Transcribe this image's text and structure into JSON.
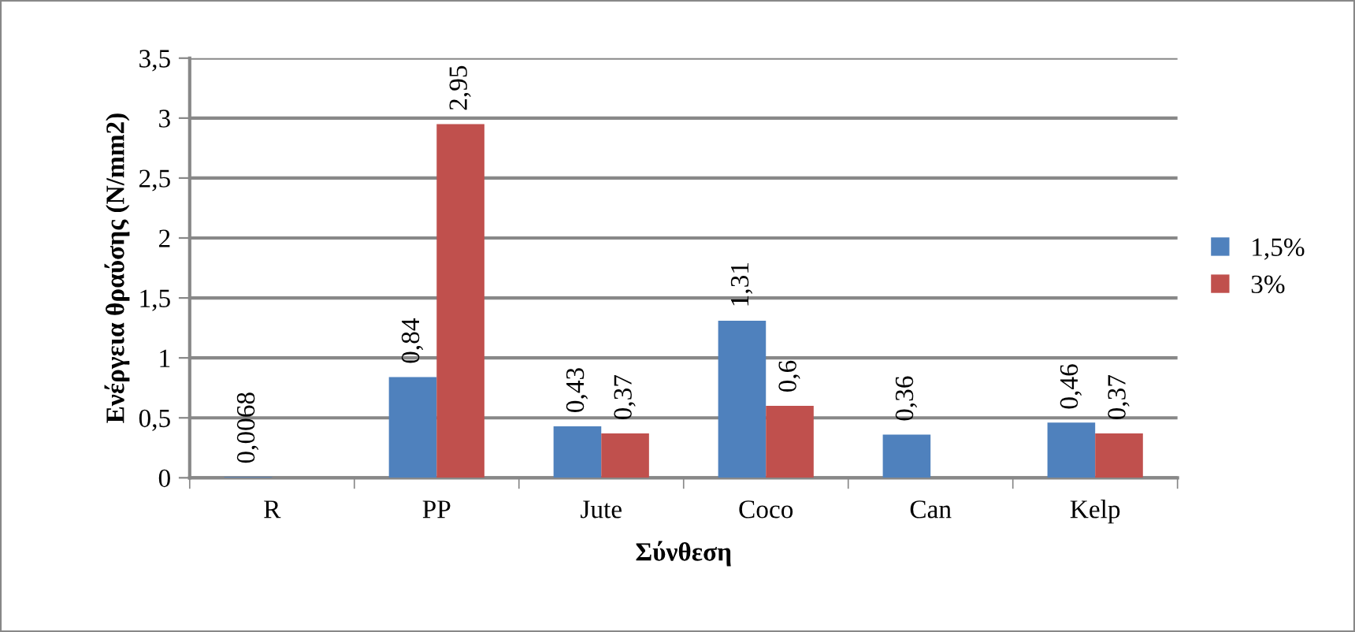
{
  "chart_data": {
    "type": "bar",
    "xlabel": "Σύνθεση",
    "ylabel": "Ενέργεια θραύσης (N/mm2)",
    "categories": [
      "R",
      "PP",
      "Jute",
      "Coco",
      "Can",
      "Kelp"
    ],
    "series": [
      {
        "name": "1,5%",
        "color": "#4f81bd",
        "values": [
          0.0068,
          0.84,
          0.43,
          1.31,
          0.36,
          0.46
        ],
        "value_labels": [
          "0,0068",
          "0,84",
          "0,43",
          "1,31",
          "0,36",
          "0,46"
        ]
      },
      {
        "name": "3%",
        "color": "#c0504d",
        "values": [
          null,
          2.95,
          0.37,
          0.6,
          null,
          0.37
        ],
        "value_labels": [
          null,
          "2,95",
          "0,37",
          "0,6",
          null,
          "0,37"
        ]
      }
    ],
    "ylim": [
      0,
      3.5
    ],
    "yticks": [
      0,
      {
        "value": 0.5,
        "label": "0,5"
      },
      1,
      {
        "value": 1.5,
        "label": "1,5"
      },
      2,
      {
        "value": 2.5,
        "label": "2,5"
      },
      3,
      {
        "value": 3.5,
        "label": "3,5"
      }
    ],
    "grid": "y",
    "legend": "right"
  }
}
